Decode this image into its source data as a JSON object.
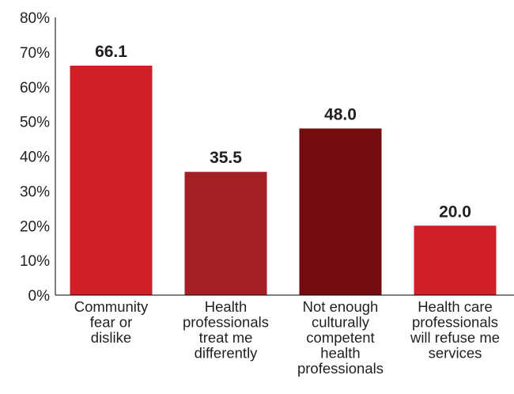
{
  "chart_data": {
    "type": "bar",
    "categories": [
      "Community fear or dislike",
      "Health professionals treat me differently",
      "Not enough culturally competent health professionals",
      "Health care professionals will refuse me services"
    ],
    "category_lines": [
      [
        "Community",
        "fear or",
        "dislike"
      ],
      [
        "Health",
        "professionals",
        "treat me",
        "differently"
      ],
      [
        "Not enough",
        "culturally",
        "competent",
        "health",
        "professionals"
      ],
      [
        "Health care",
        "professionals",
        "will refuse me",
        "services"
      ]
    ],
    "values": [
      66.1,
      35.5,
      48.0,
      20.0
    ],
    "data_labels": [
      "66.1",
      "35.5",
      "48.0",
      "20.0"
    ],
    "bar_colors": [
      "#d11f2a",
      "#a31f24",
      "#740d10",
      "#d11f2a"
    ],
    "ylim": [
      0,
      80
    ],
    "yticks": [
      0,
      10,
      20,
      30,
      40,
      50,
      60,
      70,
      80
    ],
    "ytick_labels": [
      "0%",
      "10%",
      "20%",
      "30%",
      "40%",
      "50%",
      "60%",
      "70%",
      "80%"
    ],
    "grid": false,
    "title": "",
    "xlabel": "",
    "ylabel": ""
  }
}
